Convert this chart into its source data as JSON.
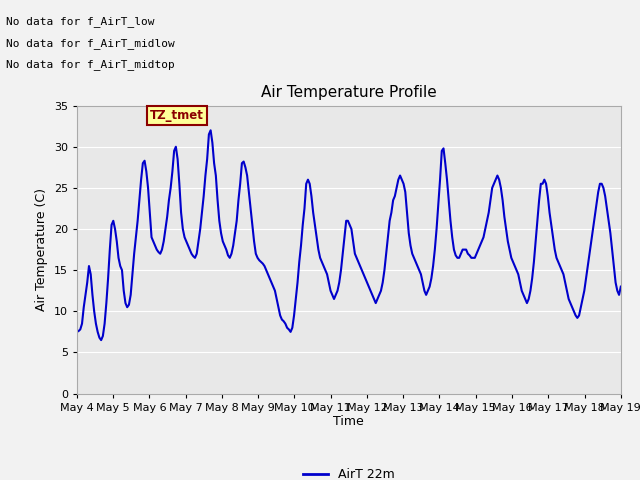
{
  "title": "Air Temperature Profile",
  "xlabel": "Time",
  "ylabel": "Air Temperature (C)",
  "ylim": [
    0,
    35
  ],
  "yticks": [
    0,
    5,
    10,
    15,
    20,
    25,
    30,
    35
  ],
  "line_color": "#0000CC",
  "line_width": 1.5,
  "bg_color": "#E8E8E8",
  "fig_color": "#F2F2F2",
  "legend_label": "AirT 22m",
  "no_data_texts": [
    "No data for f_AirT_low",
    "No data for f_AirT_midlow",
    "No data for f_AirT_midtop"
  ],
  "tz_label": "TZ_tmet",
  "x_tick_labels": [
    "May 4",
    "May 5",
    "May 6",
    "May 7",
    "May 8",
    "May 9",
    "May 10",
    "May 11",
    "May 12",
    "May 13",
    "May 14",
    "May 15",
    "May 16",
    "May 17",
    "May 18",
    "May 19"
  ],
  "temperature_data": [
    7.5,
    7.6,
    7.8,
    8.5,
    10.5,
    12.0,
    13.5,
    15.5,
    14.5,
    12.0,
    10.0,
    8.5,
    7.5,
    6.8,
    6.5,
    7.0,
    8.5,
    11.0,
    14.0,
    17.5,
    20.5,
    21.0,
    20.0,
    18.5,
    16.5,
    15.5,
    15.0,
    12.5,
    11.0,
    10.5,
    10.8,
    12.0,
    14.5,
    17.0,
    19.0,
    21.0,
    23.5,
    26.0,
    28.0,
    28.3,
    27.0,
    25.0,
    22.0,
    19.0,
    18.5,
    18.0,
    17.5,
    17.2,
    17.0,
    17.5,
    18.5,
    20.0,
    21.5,
    23.5,
    25.0,
    27.0,
    29.5,
    30.0,
    28.5,
    25.5,
    22.0,
    20.0,
    19.0,
    18.5,
    18.0,
    17.5,
    17.0,
    16.7,
    16.5,
    17.0,
    18.5,
    20.0,
    22.0,
    24.0,
    26.5,
    28.5,
    31.5,
    32.0,
    30.5,
    28.0,
    26.5,
    23.5,
    21.0,
    19.5,
    18.5,
    18.0,
    17.5,
    16.8,
    16.5,
    17.0,
    18.0,
    19.5,
    21.0,
    23.5,
    25.5,
    28.0,
    28.2,
    27.5,
    26.5,
    24.5,
    22.5,
    20.5,
    18.5,
    17.0,
    16.5,
    16.2,
    16.0,
    15.8,
    15.5,
    15.0,
    14.5,
    14.0,
    13.5,
    13.0,
    12.5,
    11.5,
    10.5,
    9.5,
    9.0,
    8.8,
    8.5,
    8.0,
    7.8,
    7.5,
    8.0,
    9.5,
    11.5,
    13.5,
    16.0,
    18.0,
    20.5,
    22.5,
    25.5,
    26.0,
    25.5,
    24.0,
    22.0,
    20.5,
    19.0,
    17.5,
    16.5,
    16.0,
    15.5,
    15.0,
    14.5,
    13.5,
    12.5,
    12.0,
    11.5,
    12.0,
    12.5,
    13.5,
    15.0,
    17.0,
    19.0,
    21.0,
    21.0,
    20.5,
    20.0,
    18.5,
    17.0,
    16.5,
    16.0,
    15.5,
    15.0,
    14.5,
    14.0,
    13.5,
    13.0,
    12.5,
    12.0,
    11.5,
    11.0,
    11.5,
    12.0,
    12.5,
    13.5,
    15.0,
    17.0,
    19.0,
    21.0,
    22.0,
    23.5,
    24.0,
    25.0,
    26.0,
    26.5,
    26.0,
    25.5,
    24.5,
    22.0,
    19.5,
    18.0,
    17.0,
    16.5,
    16.0,
    15.5,
    15.0,
    14.5,
    13.5,
    12.5,
    12.0,
    12.5,
    13.0,
    14.0,
    15.5,
    17.5,
    20.0,
    23.0,
    26.0,
    29.5,
    29.8,
    28.0,
    26.0,
    23.5,
    21.0,
    19.0,
    17.5,
    16.8,
    16.5,
    16.5,
    17.0,
    17.5,
    17.5,
    17.5,
    17.0,
    16.8,
    16.5,
    16.5,
    16.5,
    17.0,
    17.5,
    18.0,
    18.5,
    19.0,
    20.0,
    21.0,
    22.0,
    23.5,
    25.0,
    25.5,
    26.0,
    26.5,
    26.0,
    25.0,
    23.5,
    21.5,
    20.0,
    18.5,
    17.5,
    16.5,
    16.0,
    15.5,
    15.0,
    14.5,
    13.5,
    12.5,
    12.0,
    11.5,
    11.0,
    11.5,
    12.5,
    14.0,
    16.0,
    18.5,
    21.0,
    23.5,
    25.5,
    25.5,
    26.0,
    25.5,
    24.0,
    22.0,
    20.5,
    19.0,
    17.5,
    16.5,
    16.0,
    15.5,
    15.0,
    14.5,
    13.5,
    12.5,
    11.5,
    11.0,
    10.5,
    10.0,
    9.5,
    9.2,
    9.5,
    10.5,
    11.5,
    12.5,
    14.0,
    15.5,
    17.0,
    18.5,
    20.0,
    21.5,
    23.0,
    24.5,
    25.5,
    25.5,
    25.0,
    24.0,
    22.5,
    21.0,
    19.5,
    17.5,
    15.5,
    13.5,
    12.5,
    12.0,
    13.0
  ]
}
